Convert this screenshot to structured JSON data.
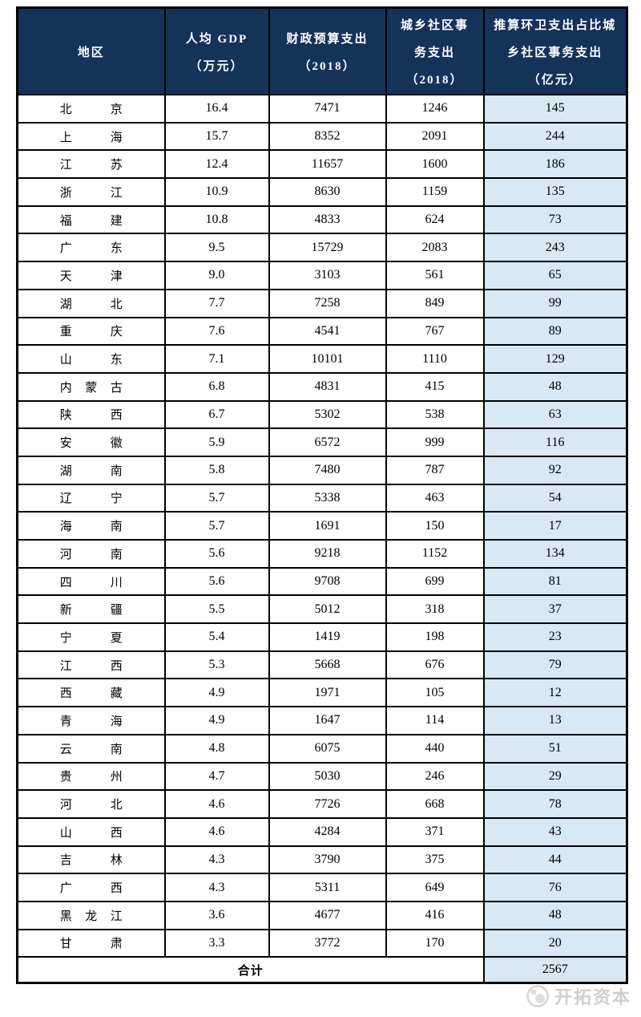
{
  "colors": {
    "header_bg": "#15325B",
    "header_text": "#FFFFFF",
    "highlight_col_bg": "#D9E8F5",
    "border": "#000000",
    "watermark_gray": "#CFCFCF"
  },
  "table": {
    "headers": [
      {
        "lines": [
          "地区"
        ]
      },
      {
        "lines": [
          "人均 GDP",
          "（万元）"
        ]
      },
      {
        "lines": [
          "财政预算支出",
          "（2018）"
        ]
      },
      {
        "lines": [
          "城乡社区事",
          "务支出",
          "（2018）"
        ]
      },
      {
        "lines": [
          "推算环卫支出占比城",
          "乡社区事务支出",
          "（亿元）"
        ]
      }
    ],
    "rows": [
      {
        "region": "北京",
        "gdp": "16.4",
        "budget": "7471",
        "community": "1246",
        "sanitation": "145"
      },
      {
        "region": "上海",
        "gdp": "15.7",
        "budget": "8352",
        "community": "2091",
        "sanitation": "244"
      },
      {
        "region": "江苏",
        "gdp": "12.4",
        "budget": "11657",
        "community": "1600",
        "sanitation": "186"
      },
      {
        "region": "浙江",
        "gdp": "10.9",
        "budget": "8630",
        "community": "1159",
        "sanitation": "135"
      },
      {
        "region": "福建",
        "gdp": "10.8",
        "budget": "4833",
        "community": "624",
        "sanitation": "73"
      },
      {
        "region": "广东",
        "gdp": "9.5",
        "budget": "15729",
        "community": "2083",
        "sanitation": "243"
      },
      {
        "region": "天津",
        "gdp": "9.0",
        "budget": "3103",
        "community": "561",
        "sanitation": "65"
      },
      {
        "region": "湖北",
        "gdp": "7.7",
        "budget": "7258",
        "community": "849",
        "sanitation": "99"
      },
      {
        "region": "重庆",
        "gdp": "7.6",
        "budget": "4541",
        "community": "767",
        "sanitation": "89"
      },
      {
        "region": "山东",
        "gdp": "7.1",
        "budget": "10101",
        "community": "1110",
        "sanitation": "129"
      },
      {
        "region": "内蒙古",
        "gdp": "6.8",
        "budget": "4831",
        "community": "415",
        "sanitation": "48"
      },
      {
        "region": "陕西",
        "gdp": "6.7",
        "budget": "5302",
        "community": "538",
        "sanitation": "63"
      },
      {
        "region": "安徽",
        "gdp": "5.9",
        "budget": "6572",
        "community": "999",
        "sanitation": "116"
      },
      {
        "region": "湖南",
        "gdp": "5.8",
        "budget": "7480",
        "community": "787",
        "sanitation": "92"
      },
      {
        "region": "辽宁",
        "gdp": "5.7",
        "budget": "5338",
        "community": "463",
        "sanitation": "54"
      },
      {
        "region": "海南",
        "gdp": "5.7",
        "budget": "1691",
        "community": "150",
        "sanitation": "17"
      },
      {
        "region": "河南",
        "gdp": "5.6",
        "budget": "9218",
        "community": "1152",
        "sanitation": "134"
      },
      {
        "region": "四川",
        "gdp": "5.6",
        "budget": "9708",
        "community": "699",
        "sanitation": "81"
      },
      {
        "region": "新疆",
        "gdp": "5.5",
        "budget": "5012",
        "community": "318",
        "sanitation": "37"
      },
      {
        "region": "宁夏",
        "gdp": "5.4",
        "budget": "1419",
        "community": "198",
        "sanitation": "23"
      },
      {
        "region": "江西",
        "gdp": "5.3",
        "budget": "5668",
        "community": "676",
        "sanitation": "79"
      },
      {
        "region": "西藏",
        "gdp": "4.9",
        "budget": "1971",
        "community": "105",
        "sanitation": "12"
      },
      {
        "region": "青海",
        "gdp": "4.9",
        "budget": "1647",
        "community": "114",
        "sanitation": "13"
      },
      {
        "region": "云南",
        "gdp": "4.8",
        "budget": "6075",
        "community": "440",
        "sanitation": "51"
      },
      {
        "region": "贵州",
        "gdp": "4.7",
        "budget": "5030",
        "community": "246",
        "sanitation": "29"
      },
      {
        "region": "河北",
        "gdp": "4.6",
        "budget": "7726",
        "community": "668",
        "sanitation": "78"
      },
      {
        "region": "山西",
        "gdp": "4.6",
        "budget": "4284",
        "community": "371",
        "sanitation": "43"
      },
      {
        "region": "吉林",
        "gdp": "4.3",
        "budget": "3790",
        "community": "375",
        "sanitation": "44"
      },
      {
        "region": "广西",
        "gdp": "4.3",
        "budget": "5311",
        "community": "649",
        "sanitation": "76"
      },
      {
        "region": "黑龙江",
        "gdp": "3.6",
        "budget": "4677",
        "community": "416",
        "sanitation": "48"
      },
      {
        "region": "甘肃",
        "gdp": "3.3",
        "budget": "3772",
        "community": "170",
        "sanitation": "20"
      }
    ],
    "total": {
      "label": "合计",
      "sanitation": "2567"
    }
  },
  "watermark": {
    "text": "开拓资本"
  }
}
